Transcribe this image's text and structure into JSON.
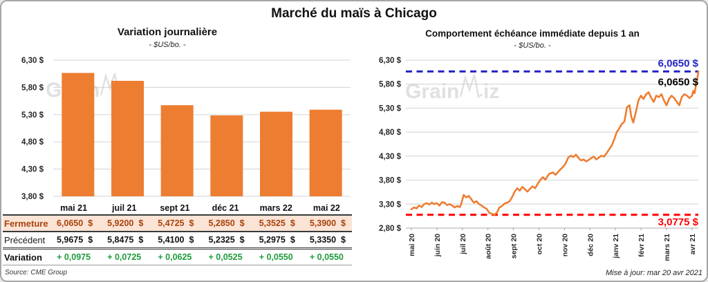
{
  "title": "Marché du maïs à Chicago",
  "source": "Source: CME Group",
  "updated": "Mise à jour: mar 20 avr 2021",
  "watermark": "GrainWiz",
  "colors": {
    "accent_orange": "#ED7D31",
    "grid": "#D9D9D9",
    "axis": "#BFBFBF",
    "high_blue": "#2323C8",
    "low_red": "#FF0000",
    "variation_green": "#1E9C3A",
    "fermeture_text": "#A8430D",
    "fermeture_bg": "#FBE3D5",
    "watermark_gray": "#C8C8C8"
  },
  "table": {
    "col_headers": [
      "mai 21",
      "juil 21",
      "sept 21",
      "déc 21",
      "mars 22",
      "mai 22"
    ],
    "rows": [
      {
        "style": "fermeture",
        "label": "Fermeture",
        "unit": "$",
        "values": [
          "6,0650",
          "5,9200",
          "5,4725",
          "5,2850",
          "5,3525",
          "5,3900"
        ]
      },
      {
        "style": "precedent",
        "label": "Précédent",
        "unit": "$",
        "values": [
          "5,9675",
          "5,8475",
          "5,4100",
          "5,2325",
          "5,2975",
          "5,3350"
        ]
      },
      {
        "style": "variation",
        "label": "Variation",
        "unit": "",
        "values": [
          "+ 0,0975",
          "+ 0,0725",
          "+ 0,0625",
          "+ 0,0525",
          "+ 0,0550",
          "+ 0,0550"
        ]
      }
    ]
  },
  "chart_data": [
    {
      "type": "bar",
      "title": "Variation journalière",
      "subtitle": "- $US/bo. -",
      "categories": [
        "mai 21",
        "juil 21",
        "sept 21",
        "déc 21",
        "mars 22",
        "mai 22"
      ],
      "values": [
        6.065,
        5.92,
        5.4725,
        5.285,
        5.3525,
        5.39
      ],
      "ylim": [
        3.8,
        6.3
      ],
      "yticks": [
        {
          "v": 6.3,
          "label": "6,30 $"
        },
        {
          "v": 5.8,
          "label": "5,80 $"
        },
        {
          "v": 5.3,
          "label": "5,30 $"
        },
        {
          "v": 4.8,
          "label": "4,80 $"
        },
        {
          "v": 4.3,
          "label": "4,30 $"
        },
        {
          "v": 3.8,
          "label": "3,80 $"
        }
      ],
      "grid": true,
      "legend": "none"
    },
    {
      "type": "line",
      "title": "Comportement échéance immédiate depuis 1 an",
      "subtitle": "- $US/bo. -",
      "x_tick_labels": [
        "mai 20",
        "juin 20",
        "juil 20",
        "août 20",
        "sept 20",
        "oct 20",
        "nov 20",
        "déc 20",
        "janv 21",
        "févr 21",
        "mars 21",
        "avr 21"
      ],
      "ylim": [
        2.8,
        6.3
      ],
      "yticks": [
        {
          "v": 6.3,
          "label": "6,30 $"
        },
        {
          "v": 5.8,
          "label": "5,80 $"
        },
        {
          "v": 5.3,
          "label": "5,30 $"
        },
        {
          "v": 4.8,
          "label": "4,80 $"
        },
        {
          "v": 4.3,
          "label": "4,30 $"
        },
        {
          "v": 3.8,
          "label": "3,80 $"
        },
        {
          "v": 3.3,
          "label": "3,30 $"
        },
        {
          "v": 2.8,
          "label": "2,80 $"
        }
      ],
      "grid": true,
      "high_line": {
        "value": 6.065,
        "label": "6,0650 $"
      },
      "low_line": {
        "value": 3.0775,
        "label": "3,0775 $"
      },
      "last_value_label": "6,0650 $",
      "series": [
        {
          "name": "échéance immédiate",
          "points": [
            [
              0.0,
              3.19
            ],
            [
              0.1,
              3.23
            ],
            [
              0.2,
              3.21
            ],
            [
              0.3,
              3.27
            ],
            [
              0.4,
              3.24
            ],
            [
              0.5,
              3.3
            ],
            [
              0.6,
              3.32
            ],
            [
              0.7,
              3.29
            ],
            [
              0.8,
              3.33
            ],
            [
              0.9,
              3.3
            ],
            [
              1.0,
              3.32
            ],
            [
              1.1,
              3.27
            ],
            [
              1.2,
              3.34
            ],
            [
              1.3,
              3.33
            ],
            [
              1.4,
              3.28
            ],
            [
              1.5,
              3.3
            ],
            [
              1.6,
              3.27
            ],
            [
              1.7,
              3.23
            ],
            [
              1.8,
              3.26
            ],
            [
              1.9,
              3.24
            ],
            [
              1.95,
              3.3
            ],
            [
              2.05,
              3.49
            ],
            [
              2.15,
              3.44
            ],
            [
              2.25,
              3.47
            ],
            [
              2.35,
              3.4
            ],
            [
              2.45,
              3.33
            ],
            [
              2.55,
              3.36
            ],
            [
              2.65,
              3.3
            ],
            [
              2.75,
              3.27
            ],
            [
              2.85,
              3.23
            ],
            [
              2.95,
              3.2
            ],
            [
              3.05,
              3.12
            ],
            [
              3.15,
              3.1
            ],
            [
              3.25,
              3.08
            ],
            [
              3.35,
              3.12
            ],
            [
              3.45,
              3.23
            ],
            [
              3.55,
              3.26
            ],
            [
              3.65,
              3.31
            ],
            [
              3.75,
              3.33
            ],
            [
              3.85,
              3.36
            ],
            [
              3.95,
              3.45
            ],
            [
              4.05,
              3.56
            ],
            [
              4.15,
              3.63
            ],
            [
              4.25,
              3.58
            ],
            [
              4.35,
              3.66
            ],
            [
              4.45,
              3.61
            ],
            [
              4.55,
              3.56
            ],
            [
              4.65,
              3.62
            ],
            [
              4.75,
              3.67
            ],
            [
              4.85,
              3.63
            ],
            [
              4.95,
              3.72
            ],
            [
              5.05,
              3.8
            ],
            [
              5.15,
              3.86
            ],
            [
              5.25,
              3.81
            ],
            [
              5.4,
              3.93
            ],
            [
              5.55,
              3.96
            ],
            [
              5.65,
              3.91
            ],
            [
              5.8,
              4.0
            ],
            [
              5.95,
              4.08
            ],
            [
              6.05,
              4.15
            ],
            [
              6.15,
              4.27
            ],
            [
              6.25,
              4.31
            ],
            [
              6.35,
              4.28
            ],
            [
              6.45,
              4.33
            ],
            [
              6.55,
              4.26
            ],
            [
              6.65,
              4.21
            ],
            [
              6.75,
              4.23
            ],
            [
              6.85,
              4.19
            ],
            [
              6.95,
              4.22
            ],
            [
              7.05,
              4.26
            ],
            [
              7.15,
              4.29
            ],
            [
              7.25,
              4.23
            ],
            [
              7.35,
              4.27
            ],
            [
              7.45,
              4.31
            ],
            [
              7.55,
              4.29
            ],
            [
              7.65,
              4.36
            ],
            [
              7.75,
              4.44
            ],
            [
              7.85,
              4.52
            ],
            [
              7.95,
              4.65
            ],
            [
              8.05,
              4.8
            ],
            [
              8.15,
              4.88
            ],
            [
              8.25,
              4.97
            ],
            [
              8.35,
              5.02
            ],
            [
              8.45,
              5.32
            ],
            [
              8.55,
              5.36
            ],
            [
              8.62,
              5.12
            ],
            [
              8.7,
              5.0
            ],
            [
              8.8,
              5.22
            ],
            [
              8.9,
              5.46
            ],
            [
              9.0,
              5.56
            ],
            [
              9.1,
              5.49
            ],
            [
              9.2,
              5.59
            ],
            [
              9.3,
              5.63
            ],
            [
              9.4,
              5.51
            ],
            [
              9.5,
              5.43
            ],
            [
              9.6,
              5.56
            ],
            [
              9.7,
              5.53
            ],
            [
              9.8,
              5.59
            ],
            [
              9.9,
              5.46
            ],
            [
              10.0,
              5.36
            ],
            [
              10.1,
              5.49
            ],
            [
              10.2,
              5.56
            ],
            [
              10.3,
              5.51
            ],
            [
              10.4,
              5.43
            ],
            [
              10.5,
              5.36
            ],
            [
              10.6,
              5.53
            ],
            [
              10.7,
              5.59
            ],
            [
              10.8,
              5.56
            ],
            [
              10.9,
              5.51
            ],
            [
              11.0,
              5.56
            ],
            [
              11.05,
              5.66
            ],
            [
              11.1,
              5.61
            ],
            [
              11.15,
              5.76
            ],
            [
              11.2,
              5.9
            ],
            [
              11.25,
              6.065
            ]
          ]
        }
      ]
    }
  ]
}
